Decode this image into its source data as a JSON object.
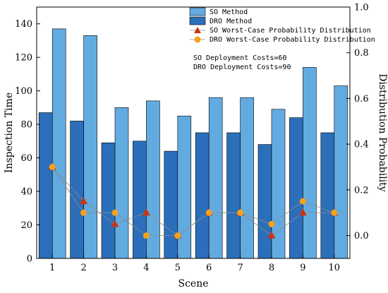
{
  "chart_data": {
    "type": "bar",
    "xlabel": "Scene",
    "ylabel": "Inspection Time",
    "y2label": "Distribution Probability",
    "categories": [
      "1",
      "2",
      "3",
      "4",
      "5",
      "6",
      "7",
      "8",
      "9",
      "10"
    ],
    "ylim": [
      0,
      150
    ],
    "y2lim": [
      -0.1,
      1.0
    ],
    "yticks": [
      0,
      20,
      40,
      60,
      80,
      100,
      120,
      140
    ],
    "y2ticks": [
      "0.0",
      "0.2",
      "0.4",
      "0.6",
      "0.8",
      "1.0"
    ],
    "bar_series": [
      {
        "name": "SO Method",
        "color": "#62abe0",
        "values": [
          137,
          133,
          90,
          94,
          85,
          96,
          96,
          89,
          114,
          103
        ]
      },
      {
        "name": "DRO Method",
        "color": "#2b6fba",
        "values": [
          87,
          82,
          69,
          70,
          64,
          75,
          75,
          68,
          84,
          75
        ]
      }
    ],
    "line_series": [
      {
        "name": "SO Worst-Case Probability Distribution",
        "marker": "triangle",
        "color": "#cc3311",
        "values": [
          0.3,
          0.15,
          0.05,
          0.1,
          0.0,
          0.1,
          0.1,
          0.0,
          0.1,
          0.1
        ]
      },
      {
        "name": "DRO Worst-Case Probability Distribution",
        "marker": "circle",
        "color": "#f5a11a",
        "values": [
          0.3,
          0.1,
          0.1,
          0.0,
          0.0,
          0.1,
          0.1,
          0.05,
          0.15,
          0.1
        ]
      }
    ],
    "annotations": [
      "SO Deployment Costs=60",
      "DRO Deployment Costs=90"
    ],
    "legend_position": "top-right"
  }
}
